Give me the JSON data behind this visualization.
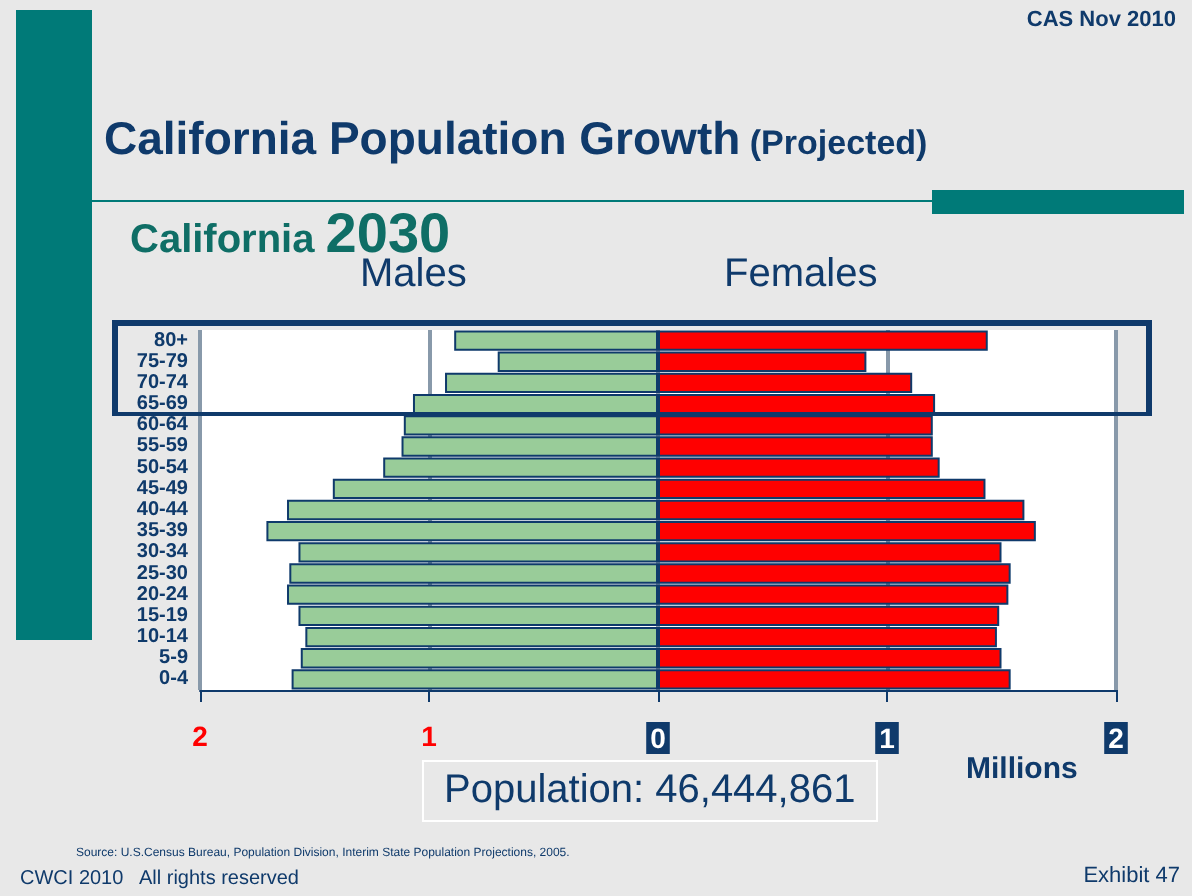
{
  "chart_data": {
    "type": "bar",
    "orientation": "horizontal",
    "title": "California Population Growth (Projected)",
    "subtitle": "California 2030",
    "xlabel": "Millions",
    "categories": [
      "80+",
      "75-79",
      "70-74",
      "65-69",
      "60-64",
      "55-59",
      "50-54",
      "45-49",
      "40-44",
      "35-39",
      "30-34",
      "25-30",
      "20-24",
      "15-19",
      "10-14",
      "5-9",
      "0-4"
    ],
    "series": [
      {
        "name": "Males",
        "color": "#99cc99",
        "values": [
          -0.89,
          -0.7,
          -0.93,
          -1.07,
          -1.11,
          -1.12,
          -1.2,
          -1.42,
          -1.62,
          -1.71,
          -1.57,
          -1.61,
          -1.62,
          -1.57,
          -1.54,
          -1.56,
          -1.6
        ]
      },
      {
        "name": "Females",
        "color": "#ff0000",
        "values": [
          1.44,
          0.91,
          1.11,
          1.21,
          1.2,
          1.2,
          1.23,
          1.43,
          1.6,
          1.65,
          1.5,
          1.54,
          1.53,
          1.49,
          1.48,
          1.5,
          1.54
        ]
      }
    ],
    "xlim": [
      -2,
      2
    ],
    "xticks": [
      {
        "value": -2,
        "label": "2"
      },
      {
        "value": -1,
        "label": "1"
      },
      0,
      1,
      2
    ],
    "grid": "x",
    "legend": false,
    "stacked": true,
    "annotations": [
      "CAS Nov 2010",
      "Population: 46,444,861",
      "Source: U.S.Census Bureau, Population Division, Interim State Population Projections, 2005.",
      "CWCI 2010   All rights reserved",
      "Exhibit 47"
    ]
  }
}
